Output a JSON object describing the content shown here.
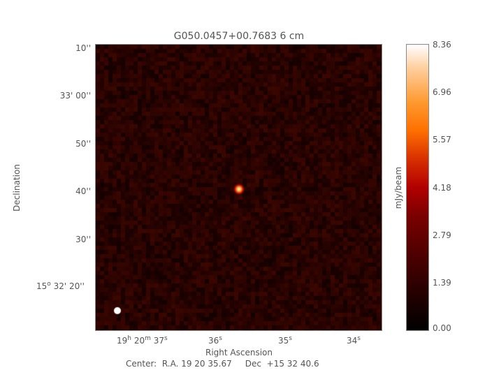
{
  "chart_data": {
    "type": "heatmap",
    "title": "G050.0457+00.7683 6 cm",
    "xlabel": "Right Ascension",
    "ylabel": "Declination",
    "x_ticks": [
      {
        "h": "19",
        "m": "20",
        "s": "37"
      },
      {
        "s": "36"
      },
      {
        "s": "35"
      },
      {
        "s": "34"
      }
    ],
    "y_ticks": [
      "10''",
      "33' 00''",
      "50''",
      "40''",
      "30''",
      "15° 32' 20''"
    ],
    "y_tick_first_deg": "15",
    "y_tick_first_rest": "32' 20''",
    "colorbar": {
      "label": "mJy/beam",
      "ticks": [
        "8.36",
        "6.96",
        "5.57",
        "4.18",
        "2.79",
        "1.39",
        "0.00"
      ],
      "range": [
        0.0,
        8.36
      ],
      "colormap": "heat (black-red-orange-white)"
    },
    "source": {
      "ra": "19 20 35.67",
      "dec": "+15 32 40.6",
      "peak": 8.36
    },
    "beam_marker_color": "#ffffff",
    "center_text": "Center:  R.A. 19 20 35.67     Dec  +15 32 40.6"
  }
}
